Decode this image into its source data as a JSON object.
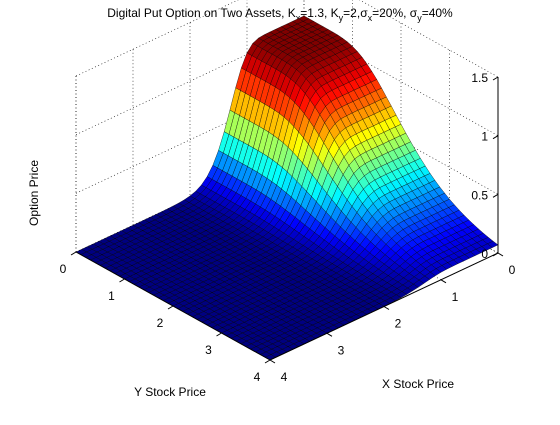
{
  "chart_data": {
    "type": "surface",
    "title_parts": {
      "prefix": "Digital Put Option on Two Assets, K",
      "kx_sub": "x",
      "kx_val": "=1.3, K",
      "ky_sub": "y",
      "ky_val": "=2,",
      "sigma": "σ",
      "sx_sub": "x",
      "sx_val": "=20%, ",
      "sy_sub": "y",
      "sy_val": "=40%"
    },
    "xlabel": "X Stock Price",
    "ylabel": "Y Stock Price",
    "zlabel": "Option Price",
    "x_ticks": [
      "0",
      "1",
      "2",
      "3",
      "4"
    ],
    "y_ticks": [
      "0",
      "1",
      "2",
      "3",
      "4"
    ],
    "z_ticks": [
      "0",
      "0.5",
      "1",
      "1.5"
    ],
    "xlim": [
      0,
      4
    ],
    "ylim": [
      0,
      4
    ],
    "zlim": [
      0,
      1.5
    ],
    "grid": true,
    "colormap": "jet",
    "surface": {
      "strike_x": 1.3,
      "strike_y": 2,
      "sigma_x": 0.2,
      "sigma_y": 0.4,
      "max_price": 1.1,
      "grid_points": 41
    }
  }
}
